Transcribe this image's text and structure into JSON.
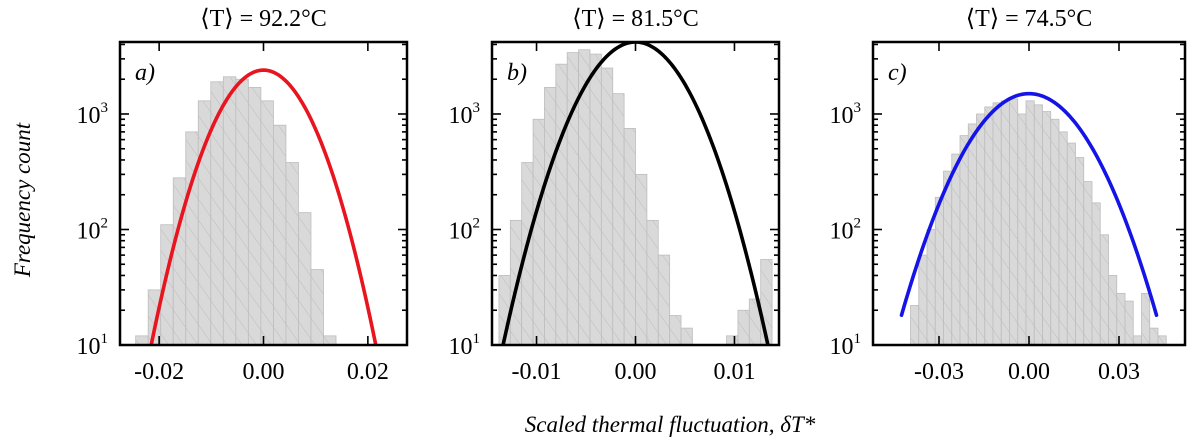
{
  "figure": {
    "ylabel": "Frequency count",
    "xlabel": "Scaled thermal fluctuation, δT*"
  },
  "chart_data": [
    {
      "type": "bar",
      "panel_label": "a)",
      "title": "⟨T⟩ = 92.2°C",
      "fit_color": "#e8141e",
      "yscale": "log",
      "ylim": [
        10,
        4200
      ],
      "xlim": [
        -0.0275,
        0.0275
      ],
      "yticks": [
        {
          "v": 10,
          "base": "10",
          "exp": "1"
        },
        {
          "v": 100,
          "base": "10",
          "exp": "2"
        },
        {
          "v": 1000,
          "base": "10",
          "exp": "3"
        }
      ],
      "xticks": [
        {
          "v": -0.02,
          "label": "-0.02"
        },
        {
          "v": 0,
          "label": "0.00"
        },
        {
          "v": 0.02,
          "label": "0.02"
        }
      ],
      "bin_edges_start": -0.0245,
      "bin_width": 0.0024,
      "counts": [
        12,
        30,
        110,
        280,
        700,
        1300,
        1900,
        2100,
        2000,
        1700,
        1300,
        800,
        380,
        140,
        45,
        12
      ],
      "fit": {
        "peak": 2400,
        "center": 0,
        "sigma": 0.0065,
        "xmin": -0.0245,
        "xmax": 0.0245
      }
    },
    {
      "type": "bar",
      "panel_label": "b)",
      "title": "⟨T⟩ = 81.5°C",
      "fit_color": "#000000",
      "yscale": "log",
      "ylim": [
        10,
        4200
      ],
      "xlim": [
        -0.0145,
        0.0145
      ],
      "yticks": [
        {
          "v": 10,
          "base": "10",
          "exp": "1"
        },
        {
          "v": 100,
          "base": "10",
          "exp": "2"
        },
        {
          "v": 1000,
          "base": "10",
          "exp": "3"
        }
      ],
      "xticks": [
        {
          "v": -0.01,
          "label": "-0.01"
        },
        {
          "v": 0,
          "label": "0.00"
        },
        {
          "v": 0.01,
          "label": "0.01"
        }
      ],
      "bin_edges_start": -0.0138,
      "bin_width": 0.00115,
      "counts": [
        40,
        120,
        380,
        900,
        1700,
        2700,
        3400,
        3600,
        3300,
        2500,
        1500,
        750,
        300,
        120,
        60,
        18,
        14,
        10,
        8,
        10,
        12,
        20,
        25,
        55
      ],
      "fit": {
        "peak": 4200,
        "center": 0,
        "sigma": 0.00385,
        "xmin": -0.0138,
        "xmax": 0.0138
      }
    },
    {
      "type": "bar",
      "panel_label": "c)",
      "title": "⟨T⟩ = 74.5°C",
      "fit_color": "#1414e6",
      "yscale": "log",
      "ylim": [
        10,
        4200
      ],
      "xlim": [
        -0.052,
        0.052
      ],
      "yticks": [
        {
          "v": 10,
          "base": "10",
          "exp": "1"
        },
        {
          "v": 100,
          "base": "10",
          "exp": "2"
        },
        {
          "v": 1000,
          "base": "10",
          "exp": "3"
        }
      ],
      "xticks": [
        {
          "v": -0.03,
          "label": "-0.03"
        },
        {
          "v": 0,
          "label": "0.00"
        },
        {
          "v": 0.03,
          "label": "0.03"
        }
      ],
      "bin_edges_start": -0.0395,
      "bin_width": 0.00275,
      "counts": [
        22,
        60,
        100,
        190,
        320,
        450,
        650,
        820,
        1000,
        1150,
        1250,
        1300,
        1350,
        1000,
        1300,
        1200,
        1050,
        900,
        700,
        560,
        420,
        260,
        170,
        90,
        40,
        28,
        24,
        12,
        28,
        14,
        12
      ],
      "fit": {
        "peak": 1500,
        "center": 0,
        "sigma": 0.0143,
        "xmin": -0.0425,
        "xmax": 0.0425
      }
    }
  ]
}
